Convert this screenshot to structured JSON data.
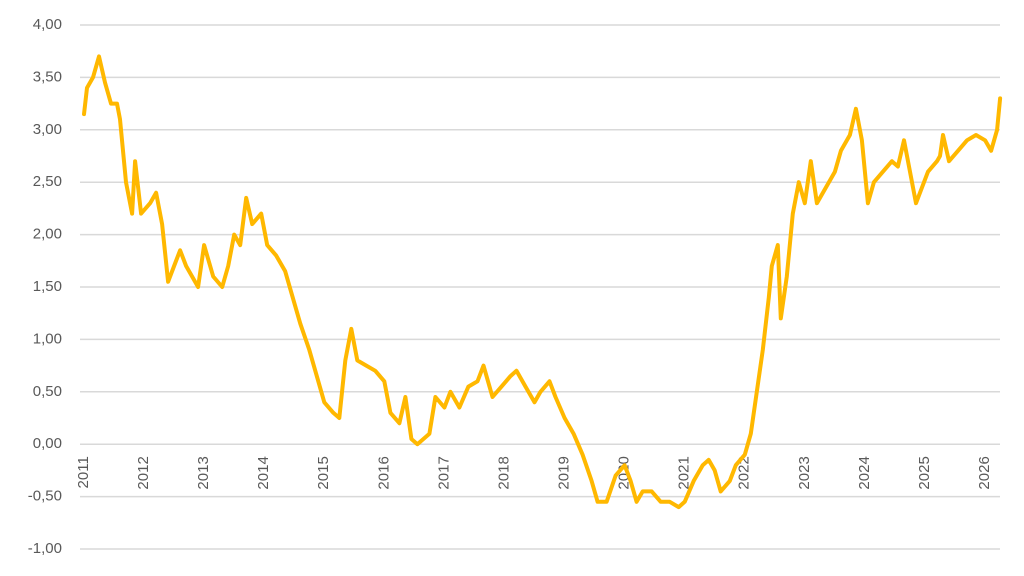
{
  "chart_data": {
    "type": "line",
    "color": "#ffb800",
    "grid": true,
    "x": [
      2011.0,
      2011.05,
      2011.15,
      2011.25,
      2011.35,
      2011.45,
      2011.55,
      2011.6,
      2011.7,
      2011.8,
      2011.85,
      2011.95,
      2012.1,
      2012.2,
      2012.3,
      2012.4,
      2012.5,
      2012.6,
      2012.7,
      2012.8,
      2012.9,
      2013.0,
      2013.15,
      2013.3,
      2013.4,
      2013.5,
      2013.6,
      2013.7,
      2013.8,
      2013.95,
      2014.05,
      2014.2,
      2014.35,
      2014.45,
      2014.6,
      2014.75,
      2014.9,
      2015.0,
      2015.15,
      2015.25,
      2015.35,
      2015.45,
      2015.55,
      2015.7,
      2015.85,
      2016.0,
      2016.1,
      2016.25,
      2016.35,
      2016.45,
      2016.55,
      2016.65,
      2016.75,
      2016.85,
      2017.0,
      2017.1,
      2017.25,
      2017.4,
      2017.55,
      2017.65,
      2017.8,
      2017.95,
      2018.1,
      2018.2,
      2018.35,
      2018.5,
      2018.6,
      2018.75,
      2018.85,
      2019.0,
      2019.15,
      2019.3,
      2019.45,
      2019.55,
      2019.7,
      2019.85,
      2020.0,
      2020.1,
      2020.2,
      2020.3,
      2020.45,
      2020.6,
      2020.75,
      2020.9,
      2021.0,
      2021.15,
      2021.3,
      2021.4,
      2021.5,
      2021.6,
      2021.75,
      2021.85,
      2022.0,
      2022.1,
      2022.2,
      2022.3,
      2022.4,
      2022.45,
      2022.55,
      2022.6,
      2022.7,
      2022.8,
      2022.9,
      2023.0,
      2023.1,
      2023.2,
      2023.3,
      2023.4,
      2023.5,
      2023.6,
      2023.75,
      2023.85,
      2023.95,
      2024.05,
      2024.15,
      2024.3,
      2024.45,
      2024.55,
      2024.65,
      2024.75,
      2024.85,
      2024.95,
      2025.05,
      2025.2,
      2025.25,
      2025.3,
      2025.4,
      2025.55,
      2025.7,
      2025.85,
      2026.0,
      2026.1,
      2026.2,
      2026.25
    ],
    "values": [
      3.15,
      3.4,
      3.5,
      3.7,
      3.45,
      3.25,
      3.25,
      3.1,
      2.5,
      2.2,
      2.7,
      2.2,
      2.3,
      2.4,
      2.1,
      1.55,
      1.7,
      1.85,
      1.7,
      1.6,
      1.5,
      1.9,
      1.6,
      1.5,
      1.7,
      2.0,
      1.9,
      2.35,
      2.1,
      2.2,
      1.9,
      1.8,
      1.65,
      1.45,
      1.15,
      0.9,
      0.6,
      0.4,
      0.3,
      0.25,
      0.8,
      1.1,
      0.8,
      0.75,
      0.7,
      0.6,
      0.3,
      0.2,
      0.45,
      0.05,
      0.0,
      0.05,
      0.1,
      0.45,
      0.35,
      0.5,
      0.35,
      0.55,
      0.6,
      0.75,
      0.45,
      0.55,
      0.65,
      0.7,
      0.55,
      0.4,
      0.5,
      0.6,
      0.45,
      0.25,
      0.1,
      -0.1,
      -0.35,
      -0.55,
      -0.55,
      -0.3,
      -0.2,
      -0.35,
      -0.55,
      -0.45,
      -0.45,
      -0.55,
      -0.55,
      -0.6,
      -0.55,
      -0.35,
      -0.2,
      -0.15,
      -0.25,
      -0.45,
      -0.35,
      -0.2,
      -0.1,
      0.1,
      0.5,
      0.9,
      1.4,
      1.7,
      1.9,
      1.2,
      1.6,
      2.2,
      2.5,
      2.3,
      2.7,
      2.3,
      2.4,
      2.5,
      2.6,
      2.8,
      2.95,
      3.2,
      2.9,
      2.3,
      2.5,
      2.6,
      2.7,
      2.65,
      2.9,
      2.6,
      2.3,
      2.45,
      2.6,
      2.7,
      2.75,
      2.95,
      2.7,
      2.8,
      2.9,
      2.95,
      2.9,
      2.8,
      3.0,
      3.3
    ],
    "xlim": [
      2011,
      2026.3
    ],
    "xticks": [
      2011,
      2012,
      2013,
      2014,
      2015,
      2016,
      2017,
      2018,
      2019,
      2020,
      2021,
      2022,
      2023,
      2024,
      2025,
      2026
    ],
    "ylim": [
      -1,
      4
    ],
    "yticks": [
      {
        "value": -1,
        "label": "-1,00"
      },
      {
        "value": -0.5,
        "label": "-0,50"
      },
      {
        "value": 0,
        "label": "0,00"
      },
      {
        "value": 0.5,
        "label": "0,50"
      },
      {
        "value": 1,
        "label": "1,00"
      },
      {
        "value": 1.5,
        "label": "1,50"
      },
      {
        "value": 2,
        "label": "2,00"
      },
      {
        "value": 2.5,
        "label": "2,50"
      },
      {
        "value": 3,
        "label": "3,00"
      },
      {
        "value": 3.5,
        "label": "3,50"
      },
      {
        "value": 4,
        "label": "4,00"
      }
    ]
  }
}
